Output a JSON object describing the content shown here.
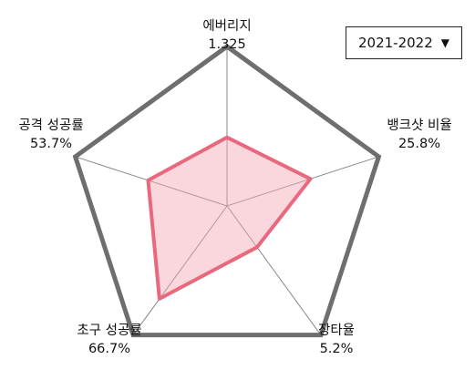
{
  "season_selector": {
    "value": "2021-2022",
    "arrow_icon": "triangle-down-icon"
  },
  "chart_data": {
    "type": "radar",
    "axes": [
      {
        "label": "에버리지",
        "value_text": "1.325",
        "value": 0.43
      },
      {
        "label": "뱅크샷 비율",
        "value_text": "25.8%",
        "value": 0.55
      },
      {
        "label": "장타율",
        "value_text": "5.2%",
        "value": 0.32
      },
      {
        "label": "초구 성공률",
        "value_text": "66.7%",
        "value": 0.72
      },
      {
        "label": "공격 성공률",
        "value_text": "53.7%",
        "value": 0.52
      }
    ],
    "range": [
      0,
      1
    ],
    "colors": {
      "outline": "#6e6e6e",
      "spoke": "#888888",
      "series_stroke": "#e8697e",
      "series_fill": "#f3a7b3"
    }
  }
}
